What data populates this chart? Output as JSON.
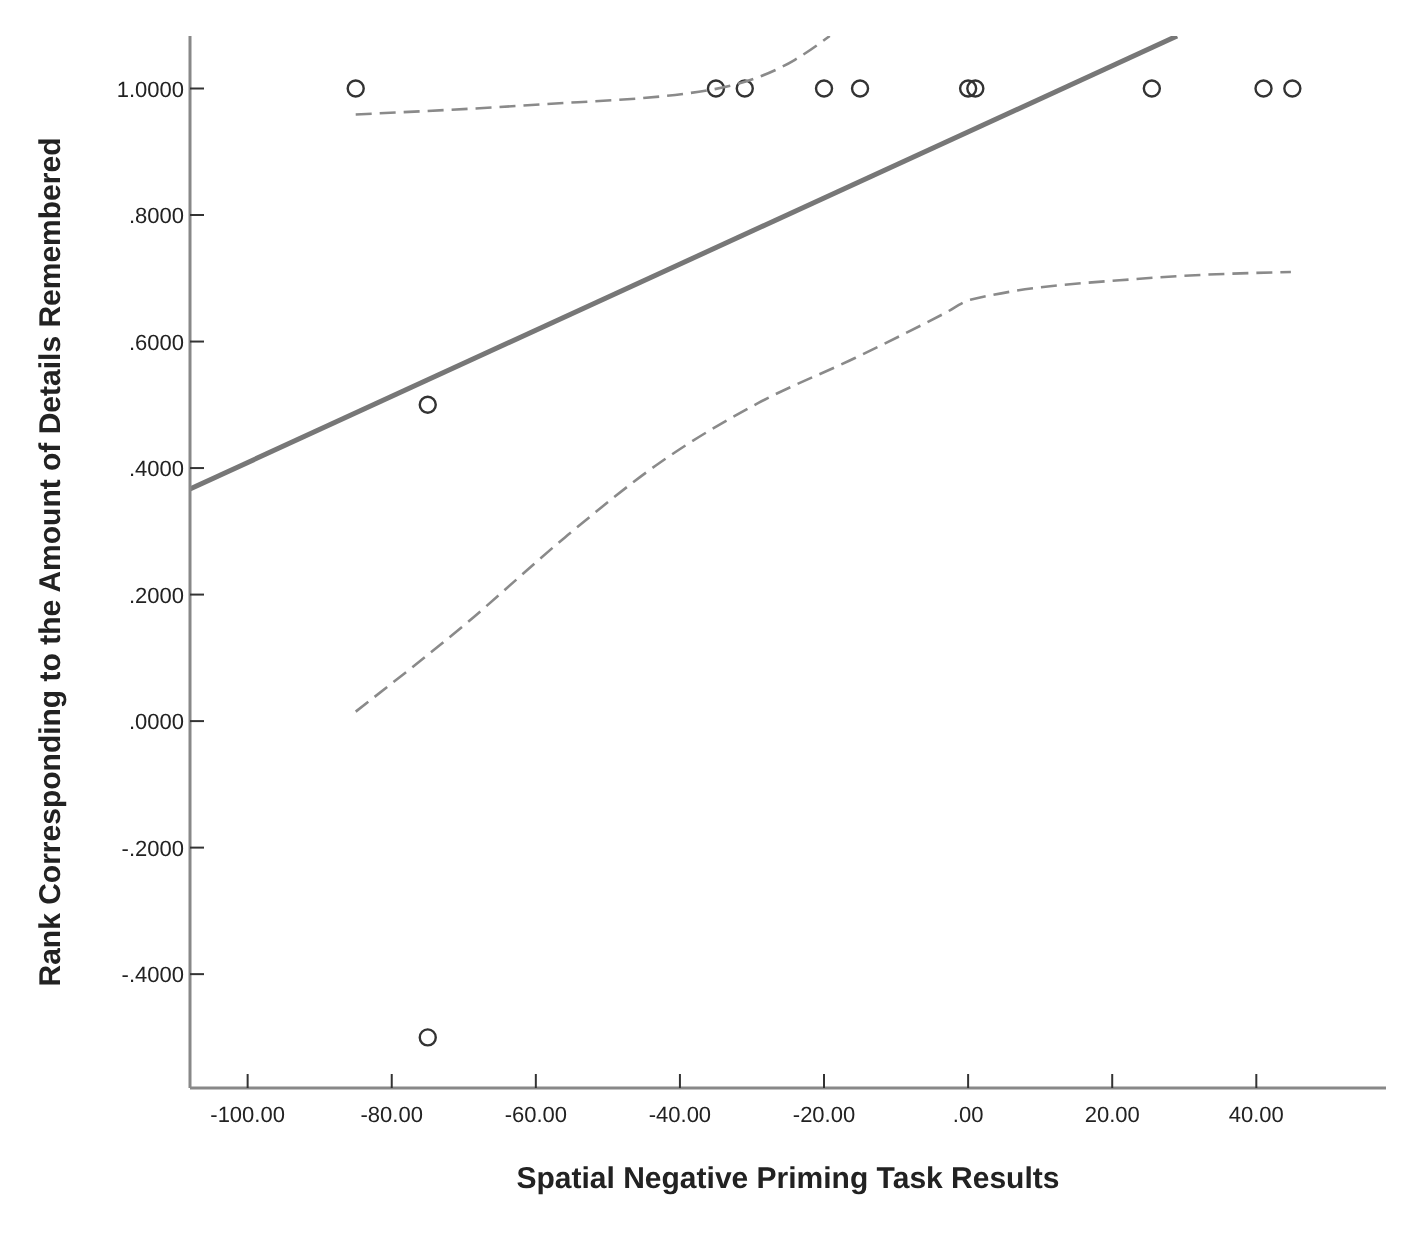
{
  "chart_data": {
    "type": "scatter",
    "xlabel": "Spatial Negative Priming Task Results",
    "ylabel": "Rank Corresponding to the Amount of Details Remembered",
    "xlim": [
      -108,
      58
    ],
    "ylim": [
      -0.58,
      1.083
    ],
    "xticks": [
      {
        "value": -100,
        "label": "-100.00"
      },
      {
        "value": -80,
        "label": "-80.00"
      },
      {
        "value": -60,
        "label": "-60.00"
      },
      {
        "value": -40,
        "label": "-40.00"
      },
      {
        "value": -20,
        "label": "-20.00"
      },
      {
        "value": 0,
        "label": ".00"
      },
      {
        "value": 20,
        "label": "20.00"
      },
      {
        "value": 40,
        "label": "40.00"
      }
    ],
    "yticks": [
      {
        "value": -0.4,
        "label": "-.4000"
      },
      {
        "value": -0.2,
        "label": "-.2000"
      },
      {
        "value": 0,
        "label": ".0000"
      },
      {
        "value": 0.2,
        "label": ".2000"
      },
      {
        "value": 0.4,
        "label": ".4000"
      },
      {
        "value": 0.6,
        "label": ".6000"
      },
      {
        "value": 0.8,
        "label": ".8000"
      },
      {
        "value": 1,
        "label": "1.0000"
      }
    ],
    "grid": false,
    "series": [
      {
        "marker": "circle",
        "color": "#333333",
        "x": [
          -85,
          -35,
          -31,
          -20,
          -15,
          0,
          1,
          25.5,
          41,
          45,
          -75,
          -75
        ],
        "values": [
          1,
          1,
          1,
          1,
          1,
          1,
          1,
          1,
          1,
          1,
          0.5,
          -0.5
        ]
      },
      {
        "type": "line",
        "line_style": "solid",
        "color": "#777777",
        "x": [
          -108,
          29
        ],
        "values": [
          0.367,
          1.083
        ]
      },
      {
        "type": "line",
        "line_style": "dashed",
        "color": "#8a8a8a",
        "x": [
          -85,
          -60.6,
          -36.2,
          -24.1,
          -19.2
        ],
        "values": [
          0.959,
          0.974,
          0.997,
          1.045,
          1.083
        ]
      },
      {
        "type": "line",
        "line_style": "dashed",
        "color": "#8a8a8a",
        "x": [
          -85,
          -69.4,
          -56,
          -42.6,
          -29.1,
          -15.7,
          -3.2,
          0.3,
          24.7,
          44.8
        ],
        "values": [
          0.015,
          0.157,
          0.29,
          0.41,
          0.503,
          0.574,
          0.645,
          0.666,
          0.7,
          0.71
        ]
      }
    ]
  }
}
